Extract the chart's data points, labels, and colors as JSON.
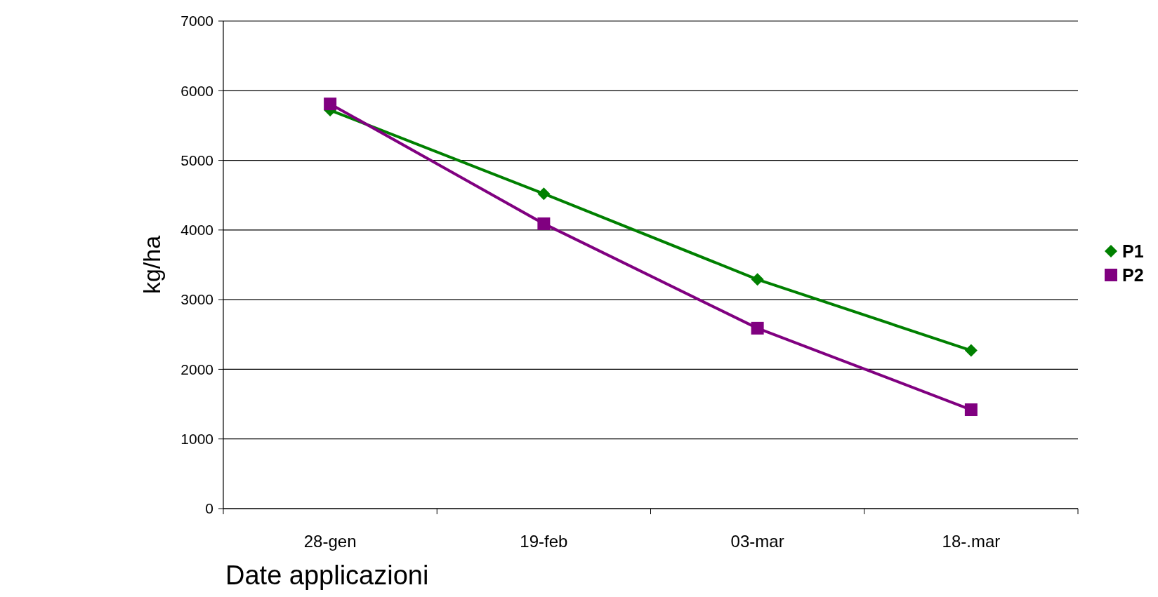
{
  "chart_data": {
    "type": "line",
    "xlabel": "Date applicazioni",
    "ylabel": "kg/ha",
    "categories": [
      "28-gen",
      "19-feb",
      "03-mar",
      "18-.mar"
    ],
    "series": [
      {
        "name": "P1",
        "color": "#008000",
        "marker": "diamond",
        "values": [
          5720,
          4520,
          3290,
          2270
        ]
      },
      {
        "name": "P2",
        "color": "#800080",
        "marker": "square",
        "values": [
          5810,
          4090,
          2590,
          1420
        ]
      }
    ],
    "ylim": [
      0,
      7000
    ],
    "yticks": [
      0,
      1000,
      2000,
      3000,
      4000,
      5000,
      6000,
      7000
    ],
    "grid": "y",
    "legend": "right"
  }
}
